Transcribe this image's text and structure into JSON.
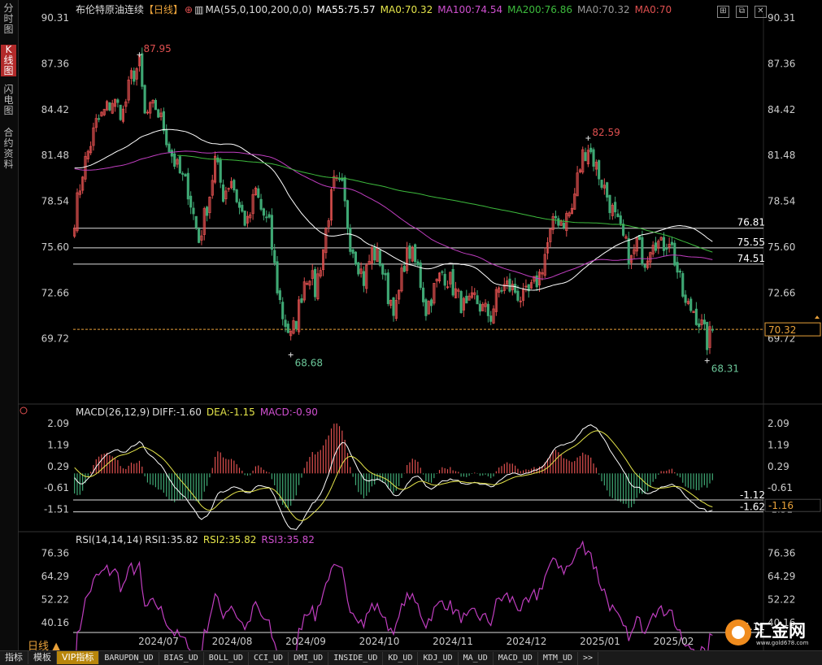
{
  "sidebar": {
    "tabs": [
      {
        "label": "分时图",
        "active": false
      },
      {
        "label": "K线图",
        "active": true
      },
      {
        "label": "闪电图",
        "active": false
      },
      {
        "label": "合约资料",
        "active": false
      }
    ]
  },
  "header": {
    "title": "布伦特原油连续",
    "period": "【日线】",
    "ma_params": "MA(55,0,100,200,0,0)",
    "ma55": "MA55:75.57",
    "ma0a": "MA0:70.32",
    "ma100": "MA100:74.54",
    "ma200": "MA200:76.86",
    "ma0b": "MA0:70.32",
    "ma0c": "MA0:70"
  },
  "macd_panel": {
    "title": "MACD(26,12,9)",
    "diff": "DIFF:-1.60",
    "dea": "DEA:-1.15",
    "macd": "MACD:-0.90"
  },
  "rsi_panel": {
    "title": "RSI(14,14,14)",
    "rsi1": "RSI1:35.82",
    "rsi2": "RSI2:35.82",
    "rsi3": "RSI3:35.82"
  },
  "period_label": "日线 ▲",
  "bottom_tabs": [
    "指标",
    "模板",
    "VIP指标",
    "BARUPDN_UD",
    "BIAS_UD",
    "BOLL_UD",
    "CCI_UD",
    "DMI_UD",
    "INSIDE_UD",
    "KD_UD",
    "KDJ_UD",
    "MA_UD",
    "MACD_UD",
    "MTM_UD",
    ">>"
  ],
  "logo": {
    "name": "汇金网",
    "url": "www.gold678.com"
  },
  "colors": {
    "up": "#e0504f",
    "down": "#3fa874",
    "ma55": "#ffffff",
    "ma100": "#c03ec0",
    "ma200": "#3dbb3d",
    "dea": "#e5e54a",
    "rsi": "#c03ec0",
    "price_line": "#e8a13a"
  },
  "chart_data": [
    {
      "type": "candlestick",
      "name_label": "布伦特原油连续",
      "x_labels": [
        "2024/07",
        "2024/08",
        "2024/09",
        "2024/10",
        "2024/11",
        "2024/12",
        "2025/01",
        "2025/02"
      ],
      "y_ticks": [
        "90.31",
        "87.36",
        "84.42",
        "81.48",
        "78.54",
        "75.60",
        "72.66",
        "69.72"
      ],
      "ylim": [
        68.5,
        90.31
      ],
      "anchors": [
        [
          0,
          77.5
        ],
        [
          3,
          80.5
        ],
        [
          8,
          83.5
        ],
        [
          14,
          85
        ],
        [
          18,
          84.2
        ],
        [
          21,
          86.5
        ],
        [
          24,
          87.3
        ],
        [
          26,
          84
        ],
        [
          30,
          84.6
        ],
        [
          33,
          83.3
        ],
        [
          35,
          82
        ],
        [
          38,
          80.6
        ],
        [
          42,
          79.3
        ],
        [
          46,
          76
        ],
        [
          50,
          79
        ],
        [
          52,
          81.2
        ],
        [
          55,
          79
        ],
        [
          58,
          80
        ],
        [
          61,
          78.1
        ],
        [
          64,
          77
        ],
        [
          67,
          79.2
        ],
        [
          69,
          78
        ],
        [
          72,
          76.9
        ],
        [
          75,
          73
        ],
        [
          77,
          71.2
        ],
        [
          80,
          69.8
        ],
        [
          82,
          70.9
        ],
        [
          85,
          73.5
        ],
        [
          87,
          74
        ],
        [
          89,
          72.8
        ],
        [
          92,
          75.5
        ],
        [
          94,
          77.8
        ],
        [
          96,
          79.6
        ],
        [
          99,
          79.3
        ],
        [
          102,
          76
        ],
        [
          104,
          75.1
        ],
        [
          107,
          73.5
        ],
        [
          110,
          75.3
        ],
        [
          113,
          74.8
        ],
        [
          116,
          72.5
        ],
        [
          119,
          71.6
        ],
        [
          122,
          74.7
        ],
        [
          124,
          75.3
        ],
        [
          127,
          74.2
        ],
        [
          130,
          71.6
        ],
        [
          133,
          72.9
        ],
        [
          136,
          74
        ],
        [
          139,
          73.4
        ],
        [
          142,
          72.3
        ],
        [
          145,
          71.5
        ],
        [
          148,
          72.3
        ],
        [
          151,
          71.6
        ],
        [
          154,
          71.2
        ],
        [
          157,
          72.9
        ],
        [
          160,
          73.1
        ],
        [
          163,
          72.8
        ],
        [
          166,
          72.2
        ],
        [
          169,
          72.8
        ],
        [
          172,
          73.8
        ],
        [
          175,
          75.8
        ],
        [
          178,
          77.5
        ],
        [
          181,
          77.3
        ],
        [
          184,
          78
        ],
        [
          186,
          80
        ],
        [
          188,
          81.5
        ],
        [
          190,
          82.1
        ],
        [
          192,
          81.2
        ],
        [
          195,
          79.8
        ],
        [
          197,
          78.9
        ],
        [
          200,
          77.4
        ],
        [
          203,
          76.1
        ],
        [
          206,
          74.7
        ],
        [
          208,
          75.9
        ],
        [
          211,
          74.8
        ],
        [
          214,
          76.3
        ],
        [
          217,
          75.6
        ],
        [
          220,
          76.2
        ],
        [
          222,
          74.8
        ],
        [
          224,
          73.3
        ],
        [
          226,
          71.8
        ],
        [
          229,
          71.6
        ],
        [
          232,
          70.5
        ],
        [
          234,
          69.5
        ],
        [
          236,
          70.3
        ]
      ],
      "high_label": "87.95",
      "high_label_2": "82.59",
      "low_label": "68.68",
      "low_label_2": "68.31",
      "last_price": "70.32",
      "hlines": [
        {
          "value": 76.81,
          "label": "76.81"
        },
        {
          "value": 75.55,
          "label": "75.55"
        },
        {
          "value": 74.51,
          "label": "74.51"
        }
      ],
      "ma_series": [
        "MA55",
        "MA100",
        "MA200"
      ]
    },
    {
      "type": "bar",
      "name": "MACD",
      "y_ticks": [
        "2.09",
        "1.19",
        "0.29",
        "-0.61",
        "-1.51"
      ],
      "ylim": [
        -1.7,
        2.2
      ],
      "hlines": [
        {
          "value": -1.12,
          "label": "-1.12"
        },
        {
          "value": -1.62,
          "label": "-1.62"
        }
      ],
      "current_label": "-1.16"
    },
    {
      "type": "line",
      "name": "RSI",
      "y_ticks": [
        "76.36",
        "64.29",
        "52.22",
        "40.16"
      ],
      "ylim": [
        30,
        80
      ],
      "hlines": [
        {
          "value": 35.11,
          "label": "35.11"
        }
      ]
    }
  ]
}
